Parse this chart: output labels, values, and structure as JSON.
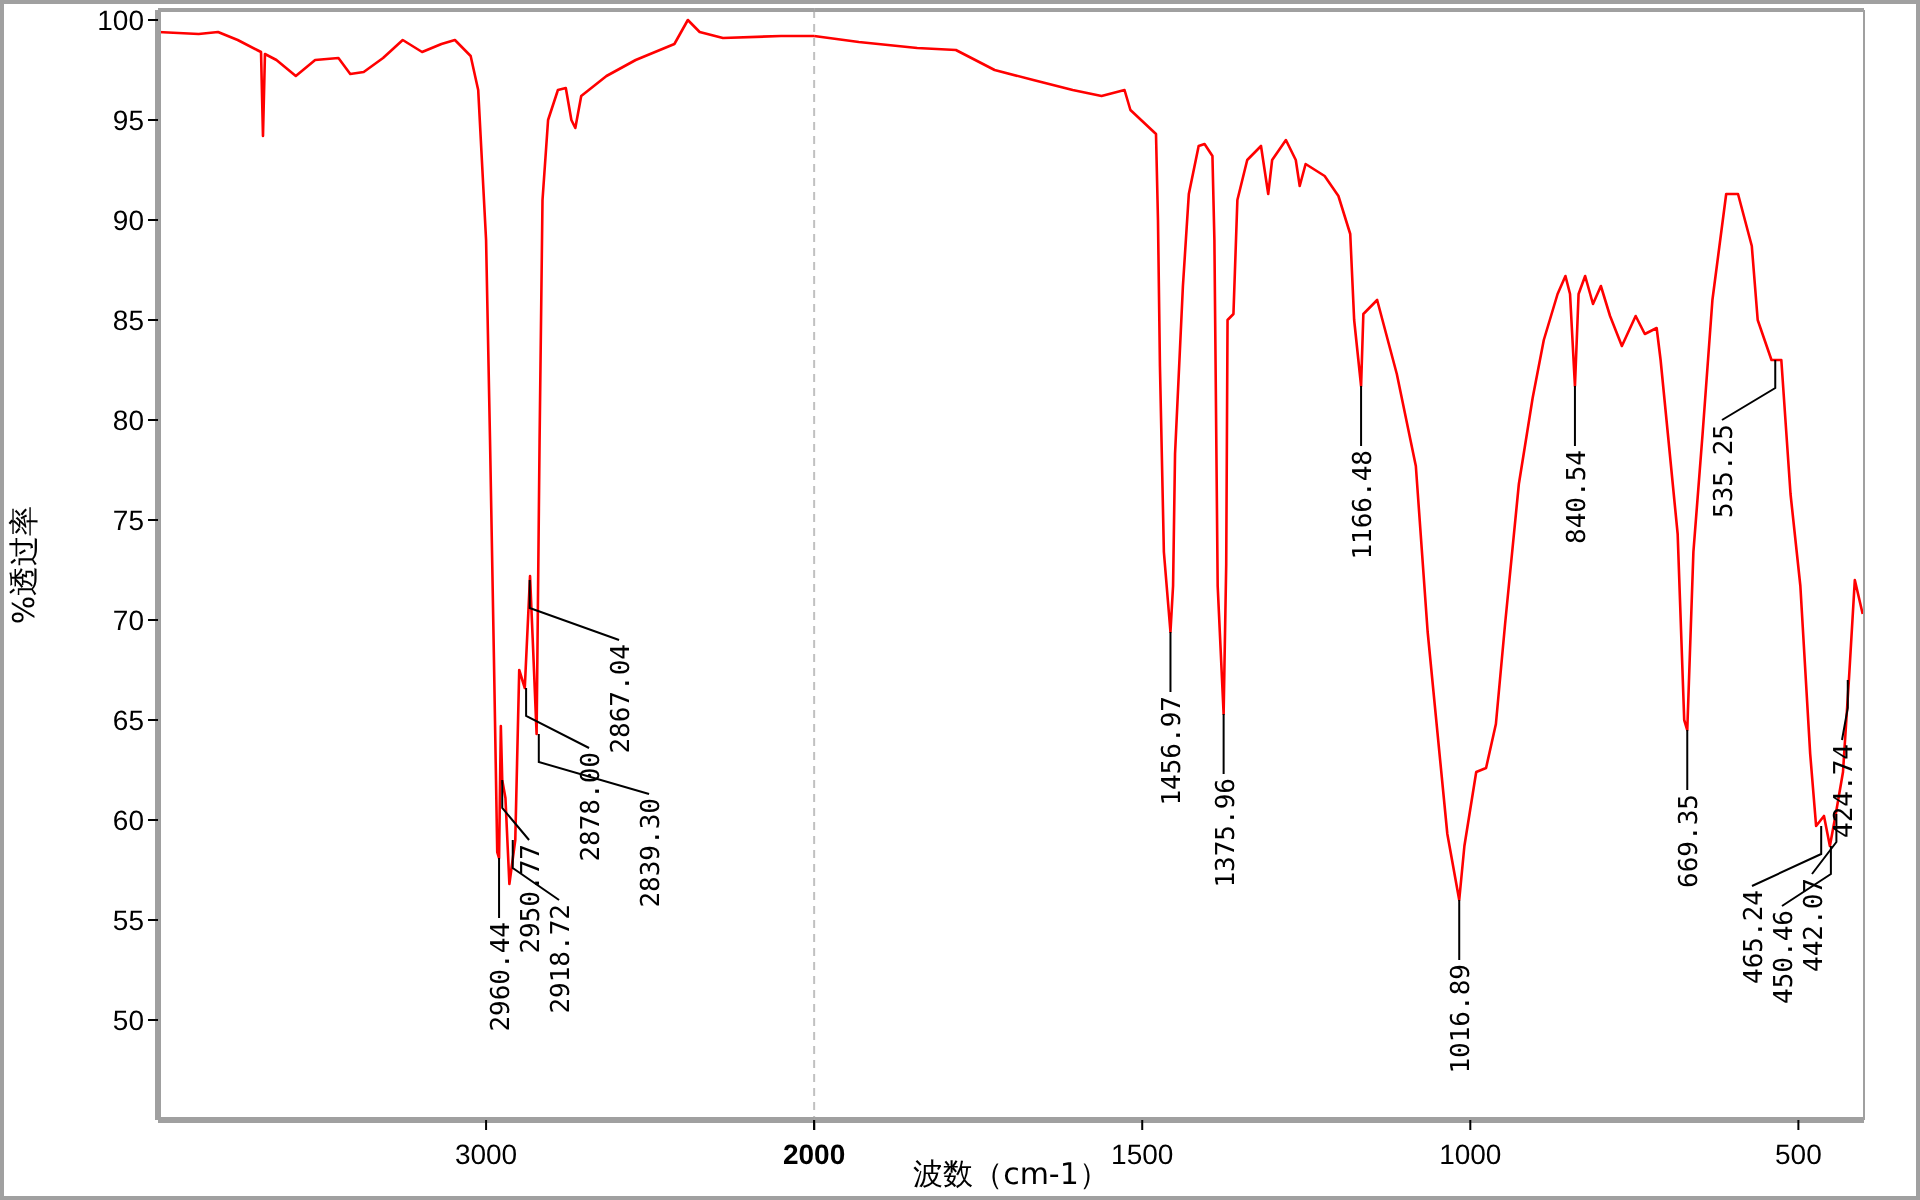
{
  "chart_data": [
    {
      "type": "line",
      "ylabel": "%透过率",
      "xlim": [
        4000,
        2000
      ],
      "ylim": [
        45,
        100.5
      ],
      "xticks": [
        3000,
        2000
      ],
      "yticks": [
        50,
        55,
        60,
        65,
        70,
        75,
        80,
        85,
        90,
        95,
        100
      ],
      "grid": false,
      "marker": "none",
      "line_style": "solid",
      "ref_lines": [
        {
          "axis": "x",
          "value": 2000,
          "color": "#c0c0c0",
          "line_style": "dashed"
        }
      ],
      "series": [
        {
          "color": "#ff0000",
          "x": [
            4000,
            3876,
            3817,
            3757,
            3698,
            3686,
            3680,
            3674,
            3639,
            3580,
            3521,
            3450,
            3414,
            3373,
            3314,
            3254,
            3195,
            3136,
            3095,
            3047,
            3024,
            3000,
            2988,
            2976,
            2966,
            2960.44,
            2955,
            2950.77,
            2941,
            2929,
            2911,
            2899,
            2882,
            2866,
            2858,
            2846,
            2837,
            2828,
            2811,
            2781,
            2757,
            2740,
            2728,
            2710,
            2633,
            2544,
            2426,
            2385,
            2349,
            2278,
            2101,
            2000
          ],
          "values": [
            99.4,
            99.3,
            99.4,
            99.0,
            98.5,
            98.4,
            94.2,
            98.3,
            98.0,
            97.2,
            98.0,
            98.1,
            97.3,
            97.4,
            98.1,
            99.0,
            98.4,
            98.8,
            99.0,
            98.2,
            96.5,
            89.0,
            79.0,
            68.0,
            58.4,
            58.1,
            64.7,
            62.0,
            61.1,
            56.8,
            59.0,
            67.5,
            66.6,
            72.2,
            69.1,
            64.3,
            78.9,
            91.0,
            95.0,
            96.5,
            96.6,
            95.0,
            94.6,
            96.2,
            97.2,
            98.0,
            98.8,
            100.0,
            99.4,
            99.1,
            99.2,
            99.2
          ]
        }
      ],
      "annotations": [
        {
          "text": "2960.44",
          "x": 2960.44,
          "y": 58.1
        },
        {
          "text": "2950.77",
          "x": 2950.77,
          "y": 62.0
        },
        {
          "text": "2918.72",
          "x": 2918.72,
          "y": 59.0
        },
        {
          "text": "2878.00",
          "x": 2878.0,
          "y": 66.6
        },
        {
          "text": "2867.04",
          "x": 2867.04,
          "y": 72.0
        },
        {
          "text": "2839.30",
          "x": 2839.3,
          "y": 64.3
        }
      ]
    },
    {
      "type": "line",
      "xlabel": "波数（cm-1）",
      "xlim": [
        2000,
        400
      ],
      "ylim": [
        45,
        100.5
      ],
      "xticks": [
        {
          "value": 2000,
          "label": null
        },
        1500,
        1000,
        500
      ],
      "tick_labels": "x",
      "grid": false,
      "marker": "none",
      "line_style": "solid",
      "series": [
        {
          "color": "#ff0000",
          "x": [
            2000,
            1932,
            1843,
            1784,
            1725,
            1666,
            1606,
            1562,
            1527,
            1518,
            1479,
            1476,
            1473,
            1467,
            1456.97,
            1453,
            1450,
            1438,
            1429,
            1414,
            1405,
            1393,
            1390,
            1385,
            1375.96,
            1372,
            1370,
            1361,
            1355,
            1340,
            1319,
            1308,
            1302,
            1281,
            1266,
            1260,
            1251,
            1222,
            1201,
            1183,
            1177,
            1166.48,
            1163,
            1142,
            1112,
            1083,
            1065,
            1035,
            1016.89,
            1009,
            991,
            976,
            961,
            947,
            926,
            905,
            888,
            867,
            855,
            848,
            840.54,
            835,
            825,
            813,
            801,
            787,
            769,
            748,
            734,
            716,
            710,
            698,
            684,
            674,
            669.35,
            660,
            646,
            631,
            610,
            592,
            571,
            562,
            541,
            526,
            512,
            497,
            482,
            473,
            461,
            452,
            443,
            432,
            423,
            414,
            402
          ],
          "values": [
            99.2,
            98.9,
            98.6,
            98.5,
            97.5,
            97.0,
            96.5,
            96.2,
            96.5,
            95.5,
            94.3,
            90.0,
            82.7,
            73.4,
            69.4,
            71.7,
            78.3,
            86.7,
            91.3,
            93.7,
            93.8,
            93.2,
            89.0,
            71.7,
            65.3,
            72.8,
            85.0,
            85.3,
            91.0,
            93.0,
            93.7,
            91.3,
            93.0,
            94.0,
            93.0,
            91.7,
            92.8,
            92.2,
            91.2,
            89.3,
            85.0,
            81.7,
            85.3,
            86.0,
            82.3,
            77.7,
            69.4,
            59.3,
            56.0,
            58.7,
            62.4,
            62.6,
            64.8,
            69.8,
            76.8,
            81.1,
            84.0,
            86.3,
            87.2,
            86.3,
            81.7,
            86.3,
            87.2,
            85.8,
            86.7,
            85.2,
            83.7,
            85.2,
            84.3,
            84.6,
            83.0,
            79.0,
            74.3,
            65.0,
            64.5,
            73.4,
            79.3,
            86.0,
            91.3,
            91.3,
            88.7,
            85.0,
            83.0,
            83.0,
            76.3,
            71.7,
            63.3,
            59.7,
            60.2,
            58.7,
            60.3,
            62.4,
            67.0,
            72.0,
            70.3
          ]
        }
      ],
      "annotations": [
        {
          "text": "1456.97",
          "x": 1456.97,
          "y": 69.4
        },
        {
          "text": "1375.96",
          "x": 1375.96,
          "y": 65.3
        },
        {
          "text": "1166.48",
          "x": 1166.48,
          "y": 81.7
        },
        {
          "text": "1016.89",
          "x": 1016.89,
          "y": 56.0
        },
        {
          "text": "840.54",
          "x": 840.54,
          "y": 81.7
        },
        {
          "text": "669.35",
          "x": 669.35,
          "y": 64.5
        },
        {
          "text": "535.25",
          "x": 535.25,
          "y": 83.0
        },
        {
          "text": "465.24",
          "x": 465.24,
          "y": 59.7
        },
        {
          "text": "450.46",
          "x": 450.46,
          "y": 58.7
        },
        {
          "text": "442.07",
          "x": 442.07,
          "y": 60.3
        },
        {
          "text": "424.74",
          "x": 424.74,
          "y": 67.0
        }
      ]
    }
  ]
}
